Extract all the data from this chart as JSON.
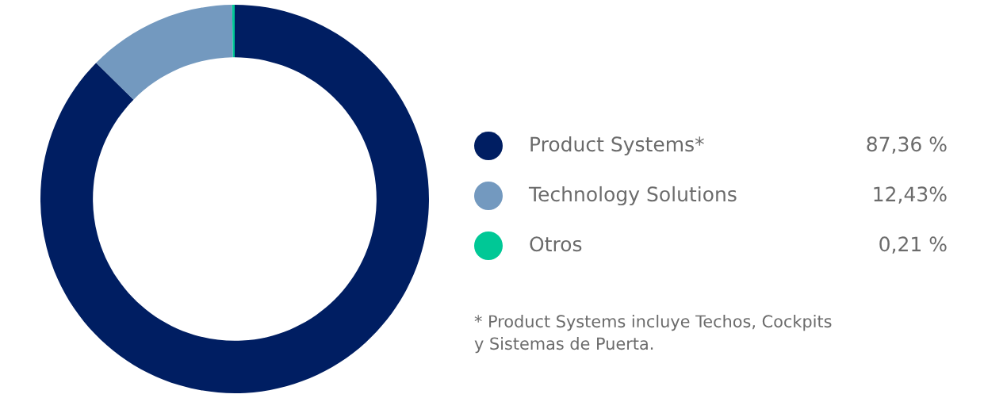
{
  "chart_data": {
    "type": "donut",
    "categories": [
      "Product Systems*",
      "Technology Solutions",
      "Otros"
    ],
    "values": [
      87.36,
      12.43,
      0.21
    ],
    "value_labels": [
      "87,36 %",
      "12,43%",
      "0,21 %"
    ],
    "colors": [
      "#001e62",
      "#7399bf",
      "#00c896"
    ],
    "legend": "right",
    "annotations": [
      "* Product Systems incluye Techos, Cockpits\ny Sistemas de Puerta."
    ]
  }
}
